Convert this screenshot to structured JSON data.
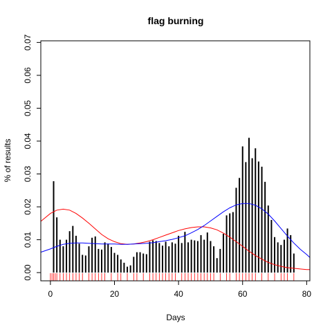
{
  "chart_data": {
    "type": "bar",
    "title": "flag burning",
    "xlabel": "Days",
    "ylabel": "% of results",
    "xlim": [
      -3,
      81
    ],
    "ylim": [
      -0.0025,
      0.0705
    ],
    "x_ticks": [
      0,
      20,
      40,
      60,
      80
    ],
    "x_tick_labels": [
      "0",
      "20",
      "40",
      "60",
      "80"
    ],
    "y_ticks": [
      0,
      0.01,
      0.02,
      0.03,
      0.04,
      0.05,
      0.06,
      0.07
    ],
    "y_tick_labels": [
      "0.00",
      "0.01",
      "0.02",
      "0.03",
      "0.04",
      "0.05",
      "0.06",
      "0.07"
    ],
    "grid": false,
    "series": [
      {
        "kind": "histogram-spikes",
        "color": "#000000",
        "x": [
          1,
          2,
          3,
          4,
          5,
          6,
          7,
          8,
          9,
          10,
          11,
          12,
          13,
          14,
          15,
          16,
          17,
          18,
          19,
          20,
          21,
          22,
          23,
          24,
          25,
          26,
          27,
          28,
          29,
          30,
          31,
          32,
          33,
          34,
          35,
          36,
          37,
          38,
          39,
          40,
          41,
          42,
          43,
          44,
          45,
          46,
          47,
          48,
          49,
          50,
          51,
          52,
          53,
          54,
          55,
          56,
          57,
          58,
          59,
          60,
          61,
          62,
          63,
          64,
          65,
          66,
          67,
          68,
          69,
          70,
          71,
          72,
          73,
          74,
          75,
          76
        ],
        "values": [
          0.0278,
          0.0168,
          0.01,
          0.008,
          0.01,
          0.0126,
          0.0142,
          0.0112,
          0.0088,
          0.0054,
          0.0052,
          0.008,
          0.0106,
          0.011,
          0.0072,
          0.007,
          0.0092,
          0.0088,
          0.0078,
          0.006,
          0.0054,
          0.004,
          0.003,
          0.0018,
          0.0022,
          0.0048,
          0.0062,
          0.0062,
          0.0058,
          0.0056,
          0.0094,
          0.0098,
          0.0096,
          0.009,
          0.0082,
          0.0094,
          0.008,
          0.0092,
          0.0088,
          0.0112,
          0.009,
          0.0124,
          0.0092,
          0.01,
          0.0098,
          0.0096,
          0.0114,
          0.01,
          0.0122,
          0.0096,
          0.008,
          0.0044,
          0.0072,
          0.0118,
          0.0174,
          0.018,
          0.0184,
          0.0258,
          0.0288,
          0.0384,
          0.0336,
          0.041,
          0.0348,
          0.0378,
          0.0338,
          0.0322,
          0.0276,
          0.0204,
          0.016,
          0.0108,
          0.0092,
          0.0084,
          0.01,
          0.0134,
          0.0114,
          0.0058
        ]
      },
      {
        "kind": "density-curve",
        "color": "#ff0000",
        "x": [
          -3,
          0,
          2,
          4,
          6,
          8,
          10,
          12,
          14,
          16,
          18,
          20,
          22,
          24,
          26,
          28,
          30,
          32,
          34,
          36,
          38,
          40,
          42,
          44,
          46,
          48,
          50,
          52,
          54,
          56,
          58,
          60,
          62,
          64,
          66,
          68,
          70,
          72,
          74,
          76,
          78,
          80,
          81
        ],
        "values": [
          0.0156,
          0.018,
          0.019,
          0.0193,
          0.019,
          0.018,
          0.0166,
          0.015,
          0.0133,
          0.0116,
          0.0103,
          0.0094,
          0.0088,
          0.0086,
          0.0087,
          0.009,
          0.0094,
          0.01,
          0.0107,
          0.0114,
          0.0121,
          0.0128,
          0.0133,
          0.0137,
          0.0139,
          0.0139,
          0.0136,
          0.013,
          0.012,
          0.0108,
          0.0094,
          0.008,
          0.0065,
          0.0052,
          0.0041,
          0.0031,
          0.0024,
          0.0019,
          0.0015,
          0.0013,
          0.0011,
          0.0009,
          0.0009
        ]
      },
      {
        "kind": "density-curve",
        "color": "#0000ff",
        "x": [
          -3,
          0,
          2,
          4,
          6,
          8,
          10,
          12,
          14,
          16,
          18,
          20,
          22,
          24,
          26,
          28,
          30,
          32,
          34,
          36,
          38,
          40,
          42,
          44,
          46,
          48,
          50,
          52,
          54,
          56,
          58,
          60,
          62,
          64,
          66,
          68,
          70,
          72,
          74,
          76,
          78,
          80,
          81
        ],
        "values": [
          0.0062,
          0.0072,
          0.008,
          0.0086,
          0.0089,
          0.009,
          0.009,
          0.0089,
          0.0088,
          0.0087,
          0.0087,
          0.0087,
          0.0086,
          0.0086,
          0.0087,
          0.0088,
          0.0089,
          0.0091,
          0.0094,
          0.0097,
          0.0101,
          0.0106,
          0.0112,
          0.0121,
          0.0131,
          0.0143,
          0.0157,
          0.0171,
          0.0185,
          0.0197,
          0.0206,
          0.021,
          0.021,
          0.0205,
          0.0194,
          0.0178,
          0.0157,
          0.0134,
          0.0111,
          0.009,
          0.0071,
          0.0055,
          0.0046
        ]
      }
    ],
    "rug": {
      "color": "#ff0000",
      "x": [
        0,
        0.5,
        1,
        1.5,
        2,
        3,
        4,
        5,
        6,
        7,
        8,
        9,
        10,
        12,
        13,
        14,
        15,
        16,
        17,
        19,
        21,
        22,
        24,
        26,
        27,
        29,
        31,
        32,
        33,
        34,
        35,
        36,
        37,
        38,
        39,
        41,
        42,
        43,
        44,
        45,
        46,
        47,
        48,
        49,
        50,
        51,
        53,
        55,
        56,
        58,
        59,
        60,
        61,
        62,
        63,
        64,
        66,
        68,
        70,
        72,
        73,
        74,
        76
      ]
    },
    "legend": null
  }
}
